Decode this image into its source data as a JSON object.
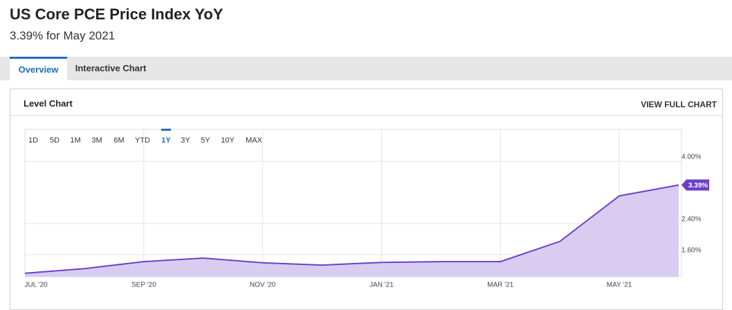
{
  "header": {
    "title": "US Core PCE Price Index YoY",
    "subtitle": "3.39% for May 2021"
  },
  "tabs": [
    "Overview",
    "Interactive Chart"
  ],
  "panel": {
    "title": "Level Chart",
    "link": "VIEW FULL CHART"
  },
  "range_buttons": [
    "1D",
    "5D",
    "1M",
    "3M",
    "6M",
    "YTD",
    "1Y",
    "3Y",
    "5Y",
    "10Y",
    "MAX"
  ],
  "chart_data": {
    "type": "area",
    "categories": [
      "JUL '20",
      null,
      "SEP '20",
      null,
      "NOV '20",
      null,
      "JAN '21",
      null,
      "MAR '21",
      null,
      "MAY '21",
      null
    ],
    "values": [
      1.12,
      1.24,
      1.42,
      1.51,
      1.39,
      1.33,
      1.4,
      1.42,
      1.42,
      1.94,
      3.11,
      3.39
    ],
    "value_labels": [
      null,
      null,
      null,
      null,
      null,
      null,
      null,
      null,
      null,
      null,
      null,
      "3.39%"
    ],
    "color": "#6c3fc9",
    "fill": "#d8cdf1",
    "ylim": [
      1.03,
      4.82
    ],
    "yticks": [
      {
        "value": 1.6,
        "label": "1.60%"
      },
      {
        "value": 2.4,
        "label": "2.40%"
      },
      {
        "value": 4.0,
        "label": "4.00%"
      }
    ],
    "grid": true
  }
}
